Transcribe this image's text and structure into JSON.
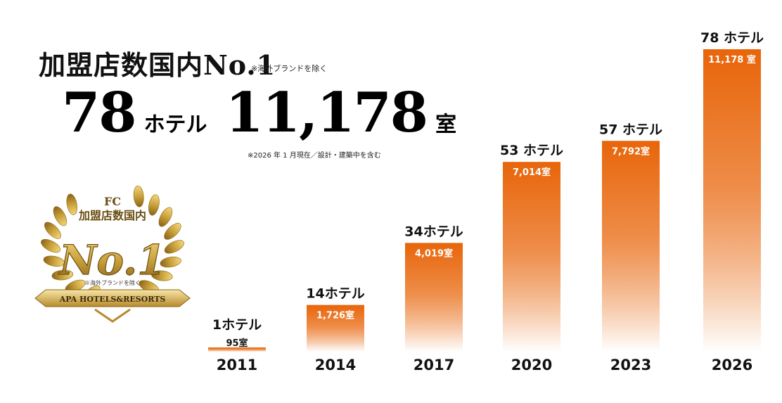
{
  "header": {
    "title": "加盟店数国内No.1",
    "title_note": "※海外ブランドを除く",
    "hotel_count": "78",
    "hotel_unit": "ホテル",
    "room_count": "11,178",
    "room_unit": "室",
    "date_note": "※2026 年 1 月現在／設計・建築中を含む"
  },
  "badge": {
    "line1": "FC",
    "line2": "加盟店数国内",
    "rank": "No.1",
    "note": "※海外ブランドを除く",
    "brand": "APA HOTELS&RESORTS"
  },
  "colors": {
    "bar_top": "#e8650a",
    "bar_bottom": "#ffffff",
    "gold": "#c9a13b"
  },
  "chart_data": {
    "type": "bar",
    "categories": [
      "2011",
      "2014",
      "2017",
      "2020",
      "2023",
      "2026"
    ],
    "series": [
      {
        "values": [
          95,
          1726,
          4019,
          7014,
          7792,
          11178
        ]
      }
    ],
    "hotel_labels": [
      "1ホテル",
      "14ホテル",
      "34ホテル",
      "53 ホテル",
      "57 ホテル",
      "78 ホテル"
    ],
    "room_labels": [
      "95室",
      "1,726室",
      "4,019室",
      "7,014室",
      "7,792室",
      "11,178 室"
    ],
    "ylim": [
      0,
      11178
    ],
    "grid": false
  }
}
